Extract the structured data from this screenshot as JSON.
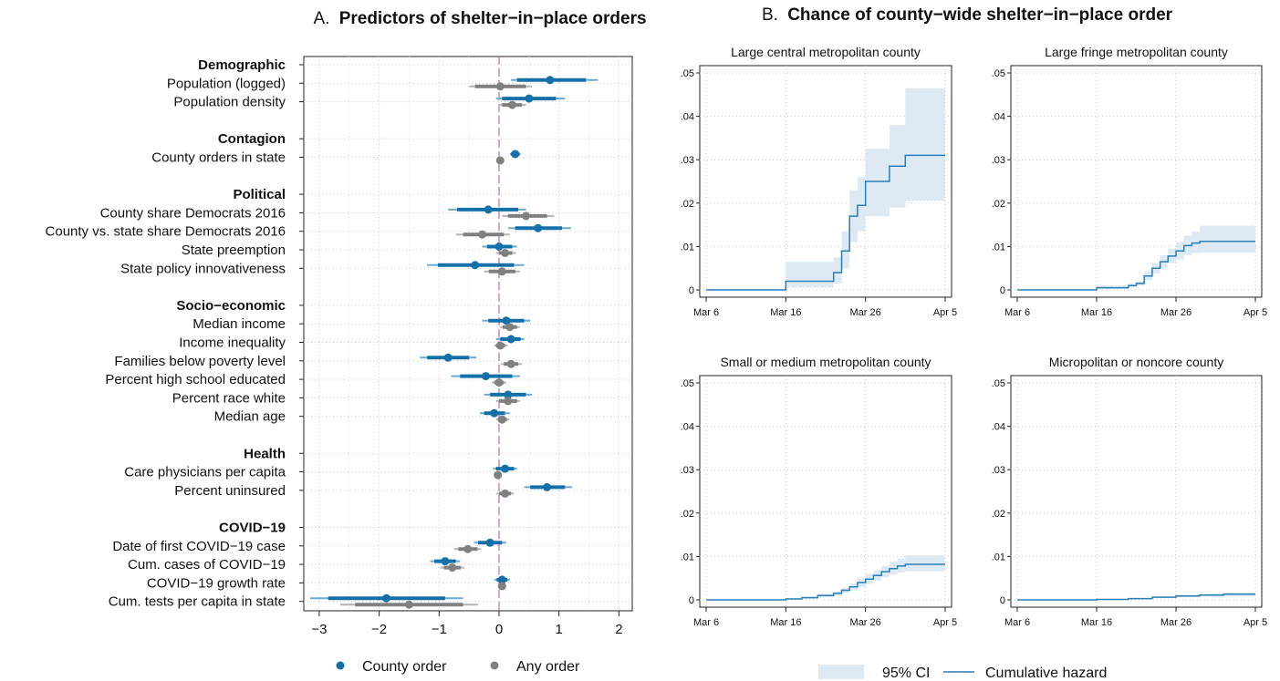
{
  "panel_a": {
    "title_prefix": "A.",
    "title_main": "Predictors of shelter−in−place orders",
    "legend": [
      "County order",
      "Any order"
    ],
    "colors": {
      "county": "#1470a8",
      "county_ci": "#6aaad4",
      "any": "#808080",
      "any_ci": "#b4b4b4",
      "zero_line": "#c97fb0"
    }
  },
  "panel_b": {
    "title_prefix": "B.",
    "title_main": "Chance of county−wide shelter−in−place order",
    "legend": [
      "95% CI",
      "Cumulative hazard"
    ],
    "colors": {
      "line": "#2a7fb8",
      "band": "#dde9f3"
    }
  },
  "chart_data": [
    {
      "type": "coefficient-plot",
      "title": "A. Predictors of shelter−in−place orders",
      "xlim": [
        -3.3,
        2.0
      ],
      "xticks": [
        "−3",
        "−2",
        "−1",
        "0",
        "1",
        "2"
      ],
      "xtick_values": [
        -3,
        -2,
        -1,
        0,
        1,
        2
      ],
      "legend_position": "bottom",
      "series": [
        {
          "name": "County order",
          "key": "county"
        },
        {
          "name": "Any order",
          "key": "any"
        }
      ],
      "groups": [
        {
          "name": "Demographic",
          "rows": [
            {
              "label": "Population (logged)",
              "county": {
                "est": 0.85,
                "ci95": [
                  0.2,
                  1.65
                ],
                "ci90": [
                  0.3,
                  1.45
                ]
              },
              "any": {
                "est": 0.02,
                "ci95": [
                  -0.5,
                  0.55
                ],
                "ci90": [
                  -0.4,
                  0.45
                ]
              }
            },
            {
              "label": "Population density",
              "county": {
                "est": 0.5,
                "ci95": [
                  -0.05,
                  1.1
                ],
                "ci90": [
                  0.05,
                  0.95
                ]
              },
              "any": {
                "est": 0.22,
                "ci95": [
                  0.0,
                  0.45
                ],
                "ci90": [
                  0.05,
                  0.38
                ]
              }
            }
          ]
        },
        {
          "name": "Contagion",
          "rows": [
            {
              "label": "County orders in state",
              "county": {
                "est": 0.27,
                "ci95": [
                  0.18,
                  0.36
                ],
                "ci90": [
                  0.2,
                  0.34
                ]
              },
              "any": {
                "est": 0.02,
                "ci95": [
                  -0.03,
                  0.07
                ],
                "ci90": [
                  -0.02,
                  0.06
                ]
              }
            }
          ]
        },
        {
          "name": "Political",
          "rows": [
            {
              "label": "County share Democrats 2016",
              "county": {
                "est": -0.18,
                "ci95": [
                  -0.85,
                  0.45
                ],
                "ci90": [
                  -0.7,
                  0.32
                ]
              },
              "any": {
                "est": 0.45,
                "ci95": [
                  0.05,
                  0.92
                ],
                "ci90": [
                  0.15,
                  0.8
                ]
              }
            },
            {
              "label": "County vs. state share Democrats 2016",
              "county": {
                "est": 0.65,
                "ci95": [
                  0.15,
                  1.2
                ],
                "ci90": [
                  0.27,
                  1.05
                ]
              },
              "any": {
                "est": -0.28,
                "ci95": [
                  -0.72,
                  0.18
                ],
                "ci90": [
                  -0.6,
                  0.08
                ]
              }
            },
            {
              "label": "State preemption",
              "county": {
                "est": 0.0,
                "ci95": [
                  -0.28,
                  0.3
                ],
                "ci90": [
                  -0.2,
                  0.22
                ]
              },
              "any": {
                "est": 0.1,
                "ci95": [
                  -0.05,
                  0.28
                ],
                "ci90": [
                  0.0,
                  0.22
                ]
              }
            },
            {
              "label": "State policy innovativeness",
              "county": {
                "est": -0.4,
                "ci95": [
                  -1.2,
                  0.42
                ],
                "ci90": [
                  -1.02,
                  0.25
                ]
              },
              "any": {
                "est": 0.05,
                "ci95": [
                  -0.25,
                  0.35
                ],
                "ci90": [
                  -0.17,
                  0.27
                ]
              }
            }
          ]
        },
        {
          "name": "Socio−economic",
          "rows": [
            {
              "label": "Median income",
              "county": {
                "est": 0.12,
                "ci95": [
                  -0.28,
                  0.52
                ],
                "ci90": [
                  -0.18,
                  0.42
                ]
              },
              "any": {
                "est": 0.18,
                "ci95": [
                  0.02,
                  0.35
                ],
                "ci90": [
                  0.06,
                  0.3
                ]
              }
            },
            {
              "label": "Income inequality",
              "county": {
                "est": 0.2,
                "ci95": [
                  -0.05,
                  0.42
                ],
                "ci90": [
                  0.02,
                  0.36
                ]
              },
              "any": {
                "est": 0.02,
                "ci95": [
                  -0.08,
                  0.14
                ],
                "ci90": [
                  -0.05,
                  0.1
                ]
              }
            },
            {
              "label": "Families below poverty level",
              "county": {
                "est": -0.85,
                "ci95": [
                  -1.32,
                  -0.38
                ],
                "ci90": [
                  -1.2,
                  -0.5
                ]
              },
              "any": {
                "est": 0.2,
                "ci95": [
                  0.03,
                  0.38
                ],
                "ci90": [
                  0.08,
                  0.32
                ]
              }
            },
            {
              "label": "Percent high school educated",
              "county": {
                "est": -0.22,
                "ci95": [
                  -0.8,
                  0.35
                ],
                "ci90": [
                  -0.65,
                  0.22
                ]
              },
              "any": {
                "est": 0.0,
                "ci95": [
                  -0.12,
                  0.12
                ],
                "ci90": [
                  -0.08,
                  0.08
                ]
              }
            },
            {
              "label": "Percent race white",
              "county": {
                "est": 0.15,
                "ci95": [
                  -0.25,
                  0.55
                ],
                "ci90": [
                  -0.15,
                  0.45
                ]
              },
              "any": {
                "est": 0.15,
                "ci95": [
                  -0.05,
                  0.35
                ],
                "ci90": [
                  0.0,
                  0.3
                ]
              }
            },
            {
              "label": "Median age",
              "county": {
                "est": -0.08,
                "ci95": [
                  -0.32,
                  0.18
                ],
                "ci90": [
                  -0.25,
                  0.1
                ]
              },
              "any": {
                "est": 0.05,
                "ci95": [
                  -0.05,
                  0.17
                ],
                "ci90": [
                  -0.02,
                  0.13
                ]
              }
            }
          ]
        },
        {
          "name": "Health",
          "rows": [
            {
              "label": "Care physicians per capita",
              "county": {
                "est": 0.1,
                "ci95": [
                  -0.1,
                  0.3
                ],
                "ci90": [
                  -0.05,
                  0.25
                ]
              },
              "any": {
                "est": -0.02,
                "ci95": [
                  -0.08,
                  0.04
                ],
                "ci90": [
                  -0.06,
                  0.02
                ]
              }
            },
            {
              "label": "Percent uninsured",
              "county": {
                "est": 0.8,
                "ci95": [
                  0.42,
                  1.22
                ],
                "ci90": [
                  0.52,
                  1.1
                ]
              },
              "any": {
                "est": 0.1,
                "ci95": [
                  -0.05,
                  0.25
                ],
                "ci90": [
                  0.0,
                  0.2
                ]
              }
            }
          ]
        },
        {
          "name": "COVID−19",
          "rows": [
            {
              "label": "Date of first COVID−19 case",
              "county": {
                "est": -0.15,
                "ci95": [
                  -0.42,
                  0.12
                ],
                "ci90": [
                  -0.35,
                  0.05
                ]
              },
              "any": {
                "est": -0.52,
                "ci95": [
                  -0.75,
                  -0.3
                ],
                "ci90": [
                  -0.68,
                  -0.36
                ]
              }
            },
            {
              "label": "Cum. cases of COVID−19",
              "county": {
                "est": -0.9,
                "ci95": [
                  -1.15,
                  -0.65
                ],
                "ci90": [
                  -1.08,
                  -0.72
                ]
              },
              "any": {
                "est": -0.78,
                "ci95": [
                  -0.98,
                  -0.58
                ],
                "ci90": [
                  -0.92,
                  -0.64
                ]
              }
            },
            {
              "label": "COVID−19 growth rate",
              "county": {
                "est": 0.05,
                "ci95": [
                  -0.08,
                  0.18
                ],
                "ci90": [
                  -0.04,
                  0.14
                ]
              },
              "any": {
                "est": 0.05,
                "ci95": [
                  -0.02,
                  0.12
                ],
                "ci90": [
                  0.0,
                  0.1
                ]
              }
            },
            {
              "label": "Cum. tests per capita in state",
              "county": {
                "est": -1.88,
                "ci95": [
                  -3.15,
                  -0.6
                ],
                "ci90": [
                  -2.85,
                  -0.9
                ]
              },
              "any": {
                "est": -1.5,
                "ci95": [
                  -2.65,
                  -0.35
                ],
                "ci90": [
                  -2.4,
                  -0.6
                ]
              }
            }
          ]
        }
      ]
    },
    {
      "type": "step",
      "title": "Large central metropolitan county",
      "x": [
        "Mar 6",
        "Mar 16",
        "Mar 22",
        "Mar 23",
        "Mar 24",
        "Mar 25",
        "Mar 26",
        "Mar 29",
        "Mar 31",
        "Apr 5"
      ],
      "xticks": [
        "Mar 6",
        "Mar 16",
        "Mar 26",
        "Apr 5"
      ],
      "yticks": [
        ".05",
        ".04",
        ".03",
        ".02",
        ".01",
        "0"
      ],
      "ylim": [
        0,
        0.05
      ],
      "series": [
        {
          "name": "Cumulative hazard",
          "values": [
            0,
            0.002,
            0.004,
            0.009,
            0.017,
            0.0195,
            0.025,
            0.0285,
            0.031,
            0.031
          ]
        },
        {
          "name": "95% CI lower",
          "values": [
            0,
            0.0005,
            0.0015,
            0.005,
            0.011,
            0.0135,
            0.017,
            0.019,
            0.0205,
            0.0205
          ]
        },
        {
          "name": "95% CI upper",
          "values": [
            0,
            0.0065,
            0.0075,
            0.0135,
            0.023,
            0.026,
            0.0325,
            0.038,
            0.0465,
            0.0465
          ]
        }
      ]
    },
    {
      "type": "step",
      "title": "Large fringe metropolitan county",
      "x": [
        "Mar 6",
        "Mar 16",
        "Mar 20",
        "Mar 21",
        "Mar 22",
        "Mar 23",
        "Mar 24",
        "Mar 25",
        "Mar 26",
        "Mar 27",
        "Mar 28",
        "Mar 29",
        "Apr 5"
      ],
      "xticks": [
        "Mar 6",
        "Mar 16",
        "Mar 26",
        "Apr 5"
      ],
      "yticks": [
        ".05",
        ".04",
        ".03",
        ".02",
        ".01",
        "0"
      ],
      "ylim": [
        0,
        0.05
      ],
      "series": [
        {
          "name": "Cumulative hazard",
          "values": [
            0,
            0.0005,
            0.001,
            0.0015,
            0.0032,
            0.005,
            0.0065,
            0.0078,
            0.009,
            0.0102,
            0.0108,
            0.0112,
            0.0112
          ]
        },
        {
          "name": "95% CI lower",
          "values": [
            0,
            0.0002,
            0.0005,
            0.001,
            0.0022,
            0.0038,
            0.005,
            0.0062,
            0.007,
            0.008,
            0.0085,
            0.0086,
            0.0086
          ]
        },
        {
          "name": "95% CI upper",
          "values": [
            0,
            0.001,
            0.0015,
            0.002,
            0.0042,
            0.0062,
            0.008,
            0.0095,
            0.011,
            0.0125,
            0.0135,
            0.0148,
            0.0148
          ]
        }
      ]
    },
    {
      "type": "step",
      "title": "Small or medium metropolitan county",
      "x": [
        "Mar 6",
        "Mar 16",
        "Mar 18",
        "Mar 20",
        "Mar 22",
        "Mar 23",
        "Mar 24",
        "Mar 25",
        "Mar 26",
        "Mar 27",
        "Mar 28",
        "Mar 29",
        "Mar 30",
        "Mar 31",
        "Apr 5"
      ],
      "xticks": [
        "Mar 6",
        "Mar 16",
        "Mar 26",
        "Apr 5"
      ],
      "yticks": [
        ".05",
        ".04",
        ".03",
        ".02",
        ".01",
        "0"
      ],
      "ylim": [
        0,
        0.05
      ],
      "series": [
        {
          "name": "Cumulative hazard",
          "values": [
            0,
            0.0002,
            0.0005,
            0.001,
            0.0015,
            0.0022,
            0.003,
            0.004,
            0.0048,
            0.0056,
            0.0065,
            0.0072,
            0.0078,
            0.0082,
            0.0082
          ]
        },
        {
          "name": "95% CI lower",
          "values": [
            0,
            0.0001,
            0.0003,
            0.0006,
            0.001,
            0.0016,
            0.0022,
            0.003,
            0.0037,
            0.0044,
            0.0052,
            0.0058,
            0.0063,
            0.0066,
            0.0066
          ]
        },
        {
          "name": "95% CI upper",
          "values": [
            0,
            0.0004,
            0.0008,
            0.0014,
            0.002,
            0.0028,
            0.0038,
            0.005,
            0.006,
            0.0068,
            0.0078,
            0.0088,
            0.0095,
            0.0103,
            0.0103
          ]
        }
      ]
    },
    {
      "type": "step",
      "title": "Micropolitan or noncore county",
      "x": [
        "Mar 6",
        "Mar 16",
        "Mar 20",
        "Mar 23",
        "Mar 26",
        "Mar 29",
        "Apr 1",
        "Apr 5"
      ],
      "xticks": [
        "Mar 6",
        "Mar 16",
        "Mar 26",
        "Apr 5"
      ],
      "yticks": [
        ".05",
        ".04",
        ".03",
        ".02",
        ".01",
        "0"
      ],
      "ylim": [
        0,
        0.05
      ],
      "series": [
        {
          "name": "Cumulative hazard",
          "values": [
            0,
            0.0001,
            0.0003,
            0.0006,
            0.0009,
            0.0011,
            0.0013,
            0.0013
          ]
        },
        {
          "name": "95% CI lower",
          "values": [
            0,
            5e-05,
            0.0002,
            0.0004,
            0.0006,
            0.0008,
            0.0009,
            0.0009
          ]
        },
        {
          "name": "95% CI upper",
          "values": [
            0,
            0.0002,
            0.0004,
            0.0008,
            0.0012,
            0.0014,
            0.0017,
            0.0017
          ]
        }
      ]
    }
  ]
}
